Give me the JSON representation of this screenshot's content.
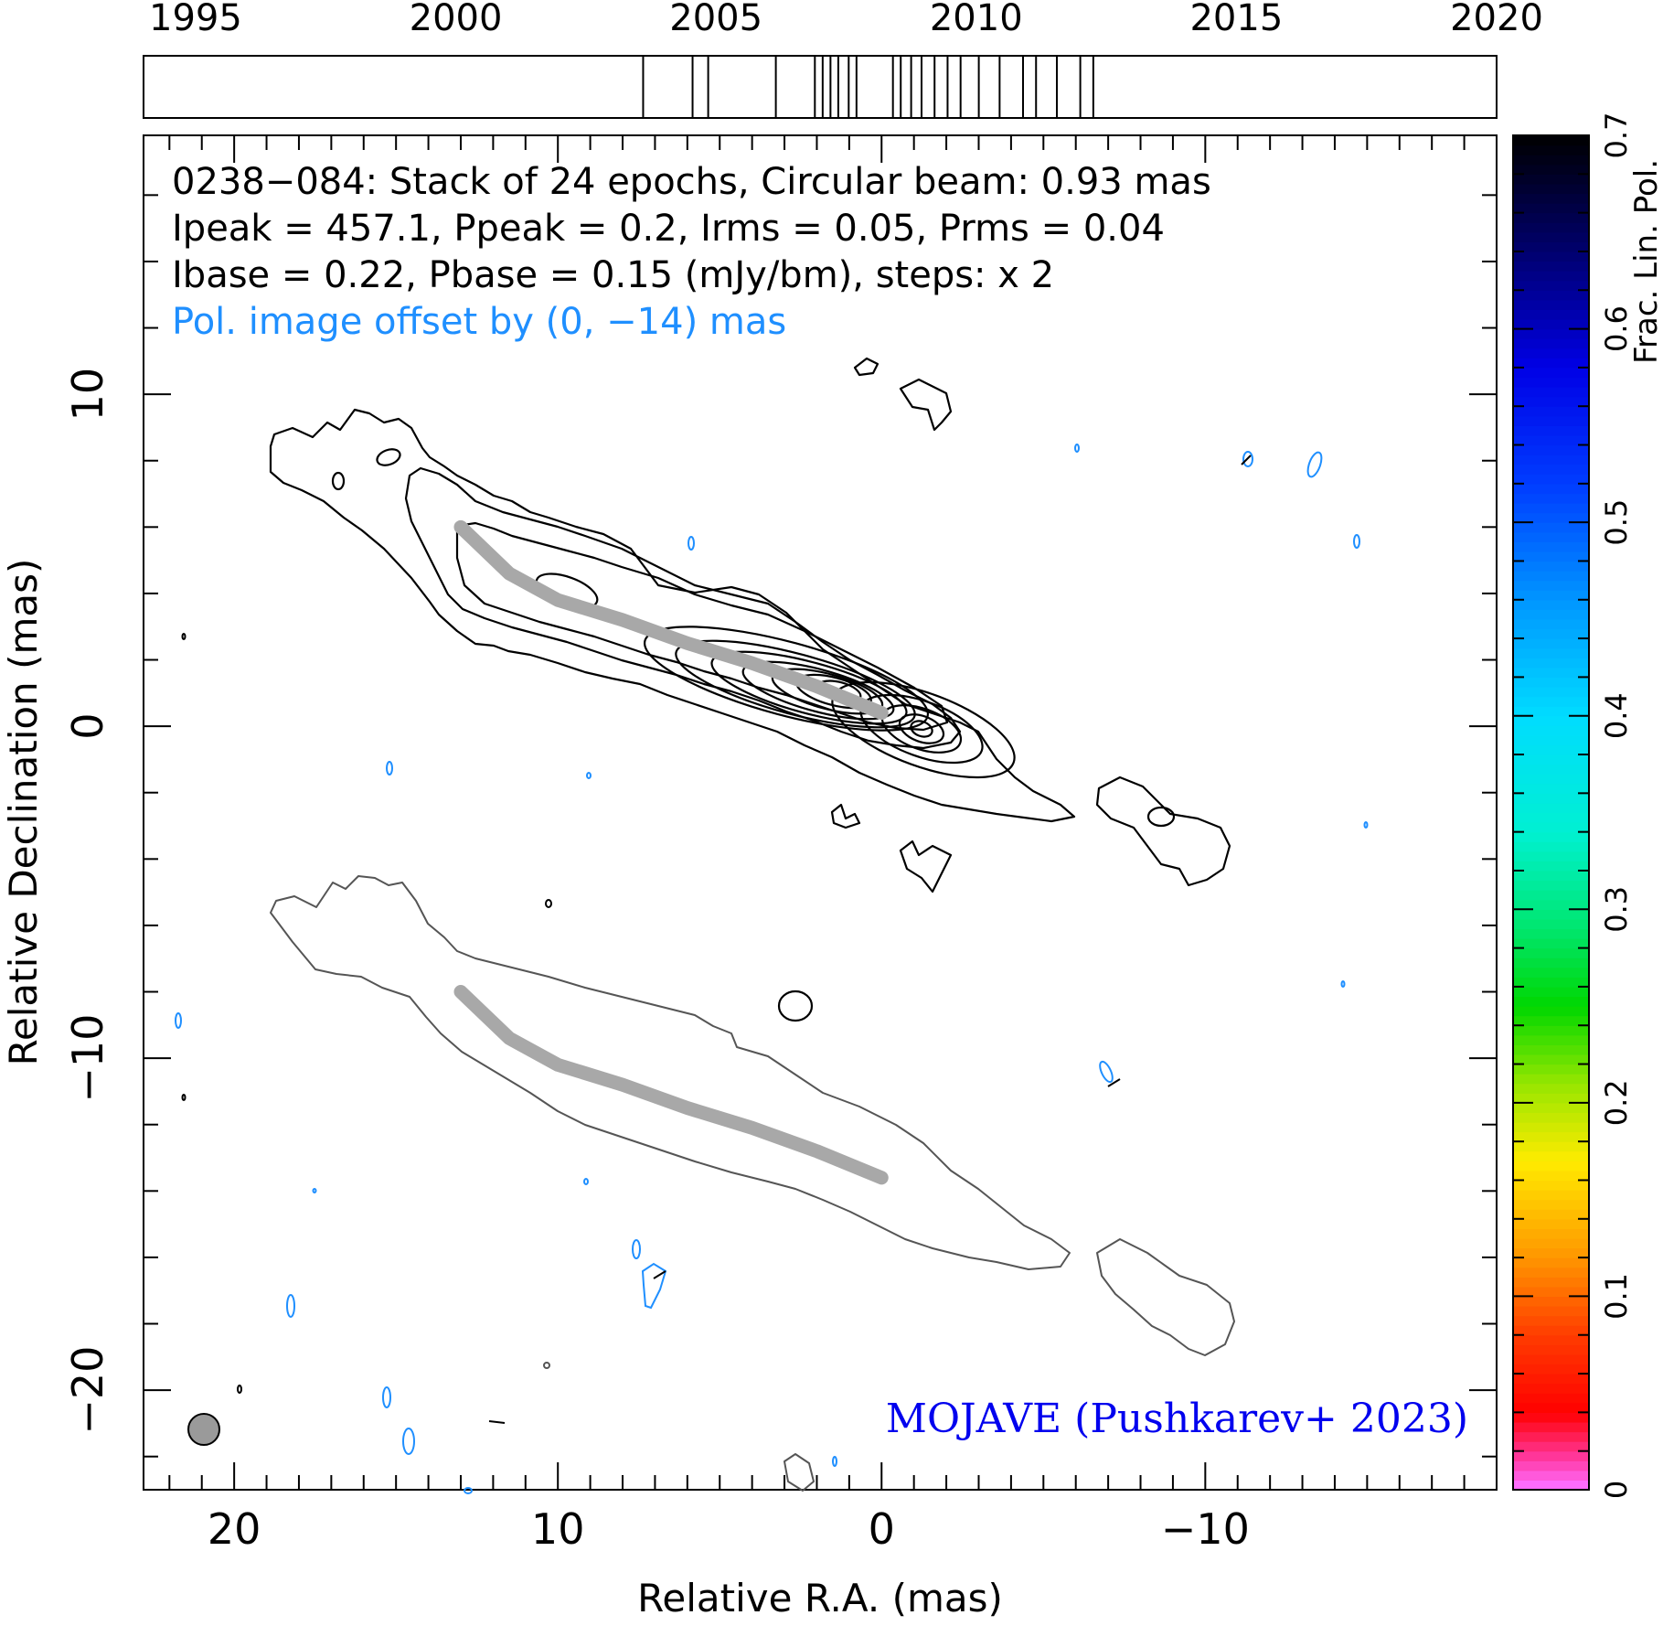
{
  "chart_data": {
    "type": "contour",
    "source": "0238-084",
    "header_lines": [
      "0238−084: Stack of 24 epochs, Circular beam: 0.93 mas",
      "Ipeak = 457.1, Ppeak = 0.2, Irms = 0.05, Prms = 0.04",
      "Ibase = 0.22, Pbase = 0.15 (mJy/bm), steps: x 2"
    ],
    "pol_offset_note": "Pol. image offset by (0, −14) mas",
    "credit": "MOJAVE (Pushkarev+ 2023)",
    "xlabel": "Relative R.A. (mas)",
    "ylabel": "Relative Declination (mas)",
    "xlim": [
      22.8,
      -19.0
    ],
    "ylim": [
      -23.0,
      17.8
    ],
    "x_ticks": [
      20,
      10,
      0,
      -10
    ],
    "x_tick_labels": [
      "20",
      "10",
      "0",
      "−10"
    ],
    "y_ticks": [
      10,
      0,
      -10,
      -20
    ],
    "y_tick_labels": [
      "10",
      "0",
      "−10",
      "−20"
    ],
    "beam_mas": 0.93,
    "epoch_bar": {
      "range": [
        1994,
        2020
      ],
      "tick_labels": [
        "1995",
        "2000",
        "2005",
        "2010",
        "2015",
        "2020"
      ],
      "tick_years": [
        1995,
        2000,
        2005,
        2010,
        2015,
        2020
      ],
      "epochs": [
        2003.6,
        2004.55,
        2004.85,
        2006.15,
        2006.9,
        2007.05,
        2007.2,
        2007.35,
        2007.55,
        2007.7,
        2008.4,
        2008.55,
        2008.75,
        2008.95,
        2009.2,
        2009.45,
        2009.7,
        2010.05,
        2010.45,
        2010.9,
        2011.15,
        2011.55,
        2012.0,
        2012.25
      ]
    },
    "colorbar": {
      "label": "Frac. Lin. Pol.",
      "range": [
        0,
        0.7
      ],
      "tick_values": [
        0,
        0.1,
        0.2,
        0.3,
        0.4,
        0.5,
        0.6,
        0.7
      ],
      "tick_labels": [
        "0",
        "0.1",
        "0.2",
        "0.3",
        "0.4",
        "0.5",
        "0.6",
        "0.7"
      ]
    },
    "ridge_line_mas": [
      [
        13.0,
        6.0
      ],
      [
        11.5,
        4.6
      ],
      [
        10.0,
        3.8
      ],
      [
        8.0,
        3.2
      ],
      [
        6.0,
        2.5
      ],
      [
        4.0,
        1.9
      ],
      [
        2.0,
        1.2
      ],
      [
        0.0,
        0.4
      ]
    ],
    "total_intensity_peaks_mas": [
      [
        1.3,
        0.7
      ],
      [
        -1.2,
        -0.5
      ],
      [
        -8.3,
        -3.2
      ]
    ]
  },
  "colors": {
    "stokes_i_contour": "#000000",
    "pol_contour": "#555555",
    "pol_noise": "#1f8fff",
    "ridge": "#a8a8a8",
    "credit": "#0000ee",
    "note": "#1f8fff"
  }
}
